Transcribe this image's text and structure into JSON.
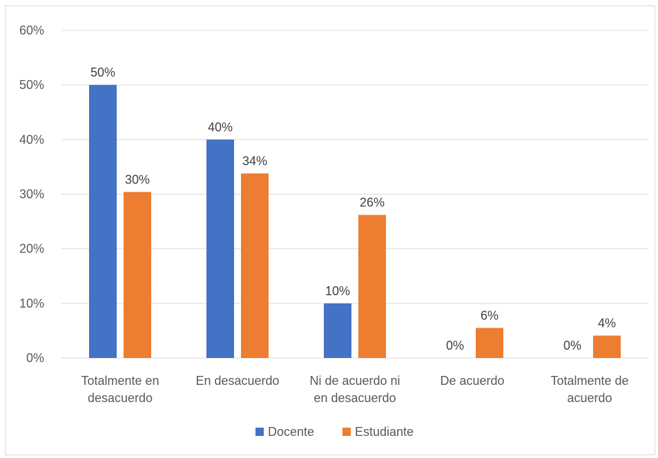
{
  "chart_data": {
    "type": "bar",
    "title": "",
    "xlabel": "",
    "ylabel": "",
    "ylim": [
      0,
      60
    ],
    "y_ticks": [
      0,
      10,
      20,
      30,
      40,
      50,
      60
    ],
    "y_tick_labels": [
      "0%",
      "10%",
      "20%",
      "30%",
      "40%",
      "50%",
      "60%"
    ],
    "grid": true,
    "legend_position": "bottom",
    "categories": [
      [
        "Totalmente en",
        "desacuerdo"
      ],
      [
        "En desacuerdo"
      ],
      [
        "Ni de acuerdo ni",
        "en desacuerdo"
      ],
      [
        "De acuerdo"
      ],
      [
        "Totalmente de",
        "acuerdo"
      ]
    ],
    "series": [
      {
        "name": "Docente",
        "color": "#4472c4",
        "values": [
          50,
          40,
          10,
          0,
          0
        ],
        "labels": [
          "50%",
          "40%",
          "10%",
          "0%",
          "0%"
        ]
      },
      {
        "name": "Estudiante",
        "color": "#ed7d31",
        "values": [
          30.4,
          33.8,
          26.2,
          5.5,
          4.1
        ],
        "labels": [
          "30%",
          "34%",
          "26%",
          "6%",
          "4%"
        ]
      }
    ]
  }
}
